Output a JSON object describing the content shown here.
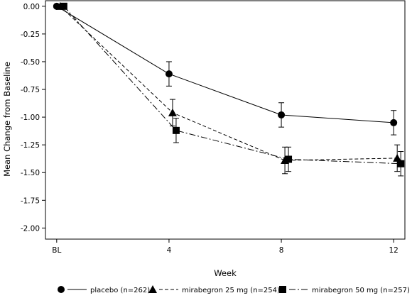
{
  "chart_data": {
    "type": "line",
    "title": "",
    "xlabel": "Week",
    "ylabel": "Mean Change from Baseline",
    "x_tick_labels": [
      "BL",
      "4",
      "8",
      "12"
    ],
    "y_ticks": [
      0.0,
      -0.25,
      -0.5,
      -0.75,
      -1.0,
      -1.25,
      -1.5,
      -1.75,
      -2.0
    ],
    "y_tick_labels": [
      "0.00",
      "-0.25",
      "-0.50",
      "-0.75",
      "-1.00",
      "-1.25",
      "-1.50",
      "-1.75",
      "-2.00"
    ],
    "xlim": [
      -0.4,
      12.4
    ],
    "ylim": [
      -2.1,
      0.05
    ],
    "grid": false,
    "legend_position": "bottom",
    "series": [
      {
        "name": "placebo (n=262)",
        "marker": "circle",
        "line_style": "solid",
        "color": "#000000",
        "x": [
          0,
          4,
          8,
          12
        ],
        "y": [
          0.0,
          -0.61,
          -0.98,
          -1.05
        ],
        "error": [
          0.0,
          0.11,
          0.11,
          0.11
        ]
      },
      {
        "name": "mirabegron 25 mg (n=254)",
        "marker": "triangle",
        "line_style": "dashed",
        "color": "#000000",
        "x": [
          0,
          4,
          8,
          12
        ],
        "y": [
          0.0,
          -0.96,
          -1.39,
          -1.37
        ],
        "error": [
          0.0,
          0.12,
          0.12,
          0.12
        ]
      },
      {
        "name": "mirabegron 50 mg (n=257)",
        "marker": "square",
        "line_style": "dash-dot",
        "color": "#000000",
        "x": [
          0,
          4,
          8,
          12
        ],
        "y": [
          0.0,
          -1.12,
          -1.38,
          -1.42
        ],
        "error": [
          0.0,
          0.11,
          0.11,
          0.11
        ]
      }
    ]
  }
}
